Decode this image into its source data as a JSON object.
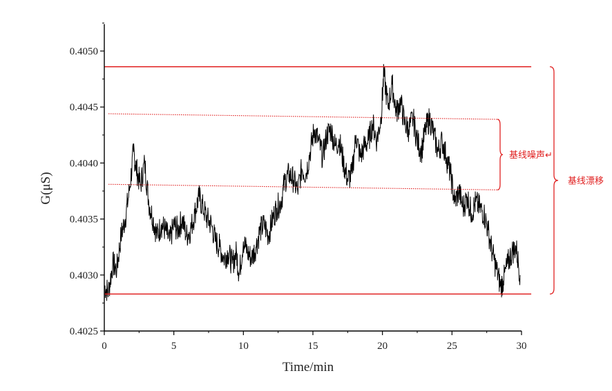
{
  "chart_data": {
    "type": "line",
    "xlabel": "Time/min",
    "ylabel": "G(μS)",
    "xlim": [
      0,
      30
    ],
    "ylim": [
      0.4025,
      0.4052
    ],
    "xticks": [
      {
        "value": 0,
        "label": "0"
      },
      {
        "value": 5,
        "label": "5"
      },
      {
        "value": 10,
        "label": "10"
      },
      {
        "value": 15,
        "label": "15"
      },
      {
        "value": 20,
        "label": "20"
      },
      {
        "value": 25,
        "label": "25"
      },
      {
        "value": 30,
        "label": "30"
      }
    ],
    "yticks": [
      {
        "value": 0.4025,
        "label": "0.4025"
      },
      {
        "value": 0.403,
        "label": "0.4030"
      },
      {
        "value": 0.4035,
        "label": "0.4035"
      },
      {
        "value": 0.404,
        "label": "0.4040"
      },
      {
        "value": 0.4045,
        "label": "0.4045"
      },
      {
        "value": 0.405,
        "label": "0.4050"
      }
    ],
    "grid": false,
    "series": [
      {
        "color": "#000000",
        "x": [
          0,
          0.3,
          0.6,
          0.9,
          1.2,
          1.5,
          1.8,
          2.1,
          2.3,
          2.6,
          2.9,
          3.2,
          3.5,
          3.8,
          4.1,
          4.4,
          4.7,
          5.0,
          5.3,
          5.6,
          5.9,
          6.2,
          6.5,
          6.8,
          7.1,
          7.4,
          7.7,
          8.0,
          8.3,
          8.6,
          8.9,
          9.2,
          9.5,
          9.7,
          10.0,
          10.3,
          10.6,
          10.9,
          11.2,
          11.5,
          11.8,
          12.1,
          12.4,
          12.7,
          13.0,
          13.3,
          13.6,
          13.9,
          14.2,
          14.5,
          14.8,
          15.1,
          15.4,
          15.7,
          16.0,
          16.3,
          16.6,
          16.9,
          17.2,
          17.5,
          17.8,
          18.1,
          18.4,
          18.7,
          19.0,
          19.3,
          19.6,
          19.9,
          20.1,
          20.4,
          20.7,
          21.0,
          21.3,
          21.6,
          21.9,
          22.2,
          22.5,
          22.8,
          23.1,
          23.4,
          23.7,
          24.0,
          24.3,
          24.6,
          24.9,
          25.2,
          25.5,
          25.8,
          26.1,
          26.4,
          26.7,
          27.0,
          27.3,
          27.6,
          27.9,
          28.2,
          28.5,
          28.7,
          29.0,
          29.3,
          29.6,
          29.9
        ],
        "y": [
          0.4029,
          0.40285,
          0.4031,
          0.40305,
          0.40335,
          0.4035,
          0.40375,
          0.4041,
          0.40395,
          0.4038,
          0.404,
          0.40365,
          0.4035,
          0.40335,
          0.40345,
          0.4034,
          0.4033,
          0.40345,
          0.4034,
          0.4035,
          0.40335,
          0.4034,
          0.40355,
          0.4037,
          0.4036,
          0.4035,
          0.40345,
          0.4033,
          0.40325,
          0.40315,
          0.4032,
          0.4031,
          0.4032,
          0.403,
          0.4033,
          0.4032,
          0.40315,
          0.40325,
          0.4034,
          0.40345,
          0.40335,
          0.4035,
          0.4036,
          0.40365,
          0.40385,
          0.4039,
          0.40385,
          0.40375,
          0.40395,
          0.4039,
          0.4041,
          0.4043,
          0.4042,
          0.40405,
          0.40425,
          0.4043,
          0.40415,
          0.4042,
          0.404,
          0.40385,
          0.4039,
          0.40425,
          0.40405,
          0.40415,
          0.4042,
          0.40435,
          0.4042,
          0.4044,
          0.4048,
          0.4045,
          0.4047,
          0.40445,
          0.40455,
          0.40435,
          0.4043,
          0.4044,
          0.4042,
          0.4041,
          0.4043,
          0.4044,
          0.40425,
          0.4041,
          0.4042,
          0.40405,
          0.4039,
          0.40365,
          0.40375,
          0.4036,
          0.4037,
          0.40355,
          0.40365,
          0.4036,
          0.40355,
          0.4034,
          0.4032,
          0.40305,
          0.4029,
          0.40295,
          0.4031,
          0.4032,
          0.40325,
          0.403
        ]
      }
    ],
    "reference_lines": [
      {
        "name": "drift-upper-line",
        "style": "solid",
        "x0": 0,
        "y0": 0.40486,
        "x1": 30.7,
        "y1": 0.40486
      },
      {
        "name": "drift-lower-line",
        "style": "solid",
        "x0": 0,
        "y0": 0.40283,
        "x1": 30.7,
        "y1": 0.40283
      },
      {
        "name": "noise-upper-line",
        "style": "dotted",
        "x0": 0.3,
        "y0": 0.40444,
        "x1": 28.3,
        "y1": 0.40439
      },
      {
        "name": "noise-lower-line",
        "style": "dotted",
        "x0": 0.3,
        "y0": 0.40381,
        "x1": 28.3,
        "y1": 0.40376
      }
    ],
    "annotations": {
      "noise": {
        "text": "基线噪声↵",
        "y_top": 0.40439,
        "y_bottom": 0.40376
      },
      "drift": {
        "text": "基线漂移",
        "y_top": 0.40486,
        "y_bottom": 0.40283
      }
    },
    "line_color": "#e02020"
  }
}
